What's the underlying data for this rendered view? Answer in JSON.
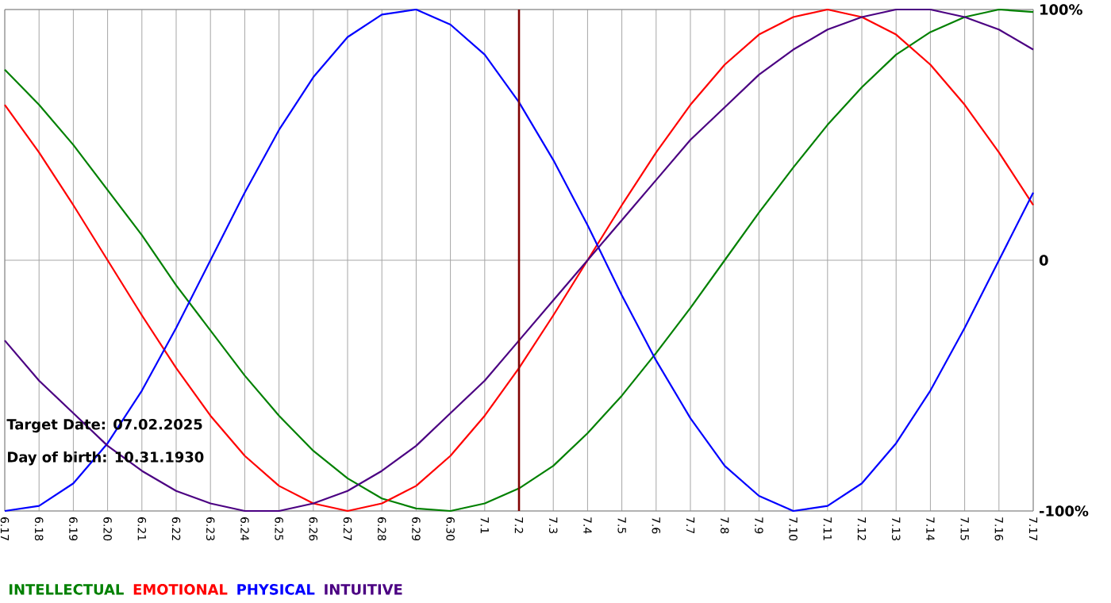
{
  "chart_data": {
    "type": "line",
    "categories": [
      "6.17",
      "6.18",
      "6.19",
      "6.20",
      "6.21",
      "6.22",
      "6.23",
      "6.24",
      "6.25",
      "6.26",
      "6.27",
      "6.28",
      "6.29",
      "6.30",
      "7.1",
      "7.2",
      "7.3",
      "7.4",
      "7.5",
      "7.6",
      "7.7",
      "7.8",
      "7.9",
      "7.10",
      "7.11",
      "7.12",
      "7.13",
      "7.14",
      "7.15",
      "7.16",
      "7.17"
    ],
    "series": [
      {
        "name": "INTELLECTUAL",
        "color": "#008000",
        "values": [
          76,
          62,
          46,
          28,
          10,
          -10,
          -28,
          -46,
          -62,
          -76,
          -87,
          -95,
          -99,
          -100,
          -97,
          -91,
          -82,
          -69,
          -54,
          -37,
          -19,
          0,
          19,
          37,
          54,
          69,
          82,
          91,
          97,
          100,
          99
        ]
      },
      {
        "name": "EMOTIONAL",
        "color": "#ff0000",
        "values": [
          62,
          43,
          22,
          0,
          -22,
          -43,
          -62,
          -78,
          -90,
          -97,
          -100,
          -97,
          -90,
          -78,
          -62,
          -43,
          -22,
          0,
          22,
          43,
          62,
          78,
          90,
          97,
          100,
          97,
          90,
          78,
          62,
          43,
          22
        ]
      },
      {
        "name": "PHYSICAL",
        "color": "#0000ff",
        "values": [
          -100,
          -98,
          -89,
          -73,
          -52,
          -27,
          0,
          27,
          52,
          73,
          89,
          98,
          100,
          94,
          82,
          63,
          40,
          14,
          -14,
          -40,
          -63,
          -82,
          -94,
          -100,
          -98,
          -89,
          -73,
          -52,
          -27,
          0,
          27
        ]
      },
      {
        "name": "INTUITIVE",
        "color": "#4b0082",
        "values": [
          -32,
          -48,
          -61,
          -74,
          -84,
          -92,
          -97,
          -100,
          -100,
          -97,
          -92,
          -84,
          -74,
          -61,
          -48,
          -32,
          -16,
          0,
          16,
          32,
          48,
          61,
          74,
          84,
          92,
          97,
          100,
          100,
          97,
          92,
          84
        ]
      }
    ],
    "ylim": [
      -100,
      100
    ],
    "yticks": [
      {
        "value": -100,
        "label": "-100%"
      },
      0,
      {
        "value": 100,
        "label": "100%"
      }
    ],
    "grid": true,
    "legend": "bottom left",
    "marker": "none",
    "ref_lines": [
      {
        "axis": "x",
        "value": "7.2",
        "color": "#800000"
      }
    ],
    "annotations": [
      "Target Date: 07.02.2025",
      "Day of birth: 10.31.1930"
    ]
  }
}
